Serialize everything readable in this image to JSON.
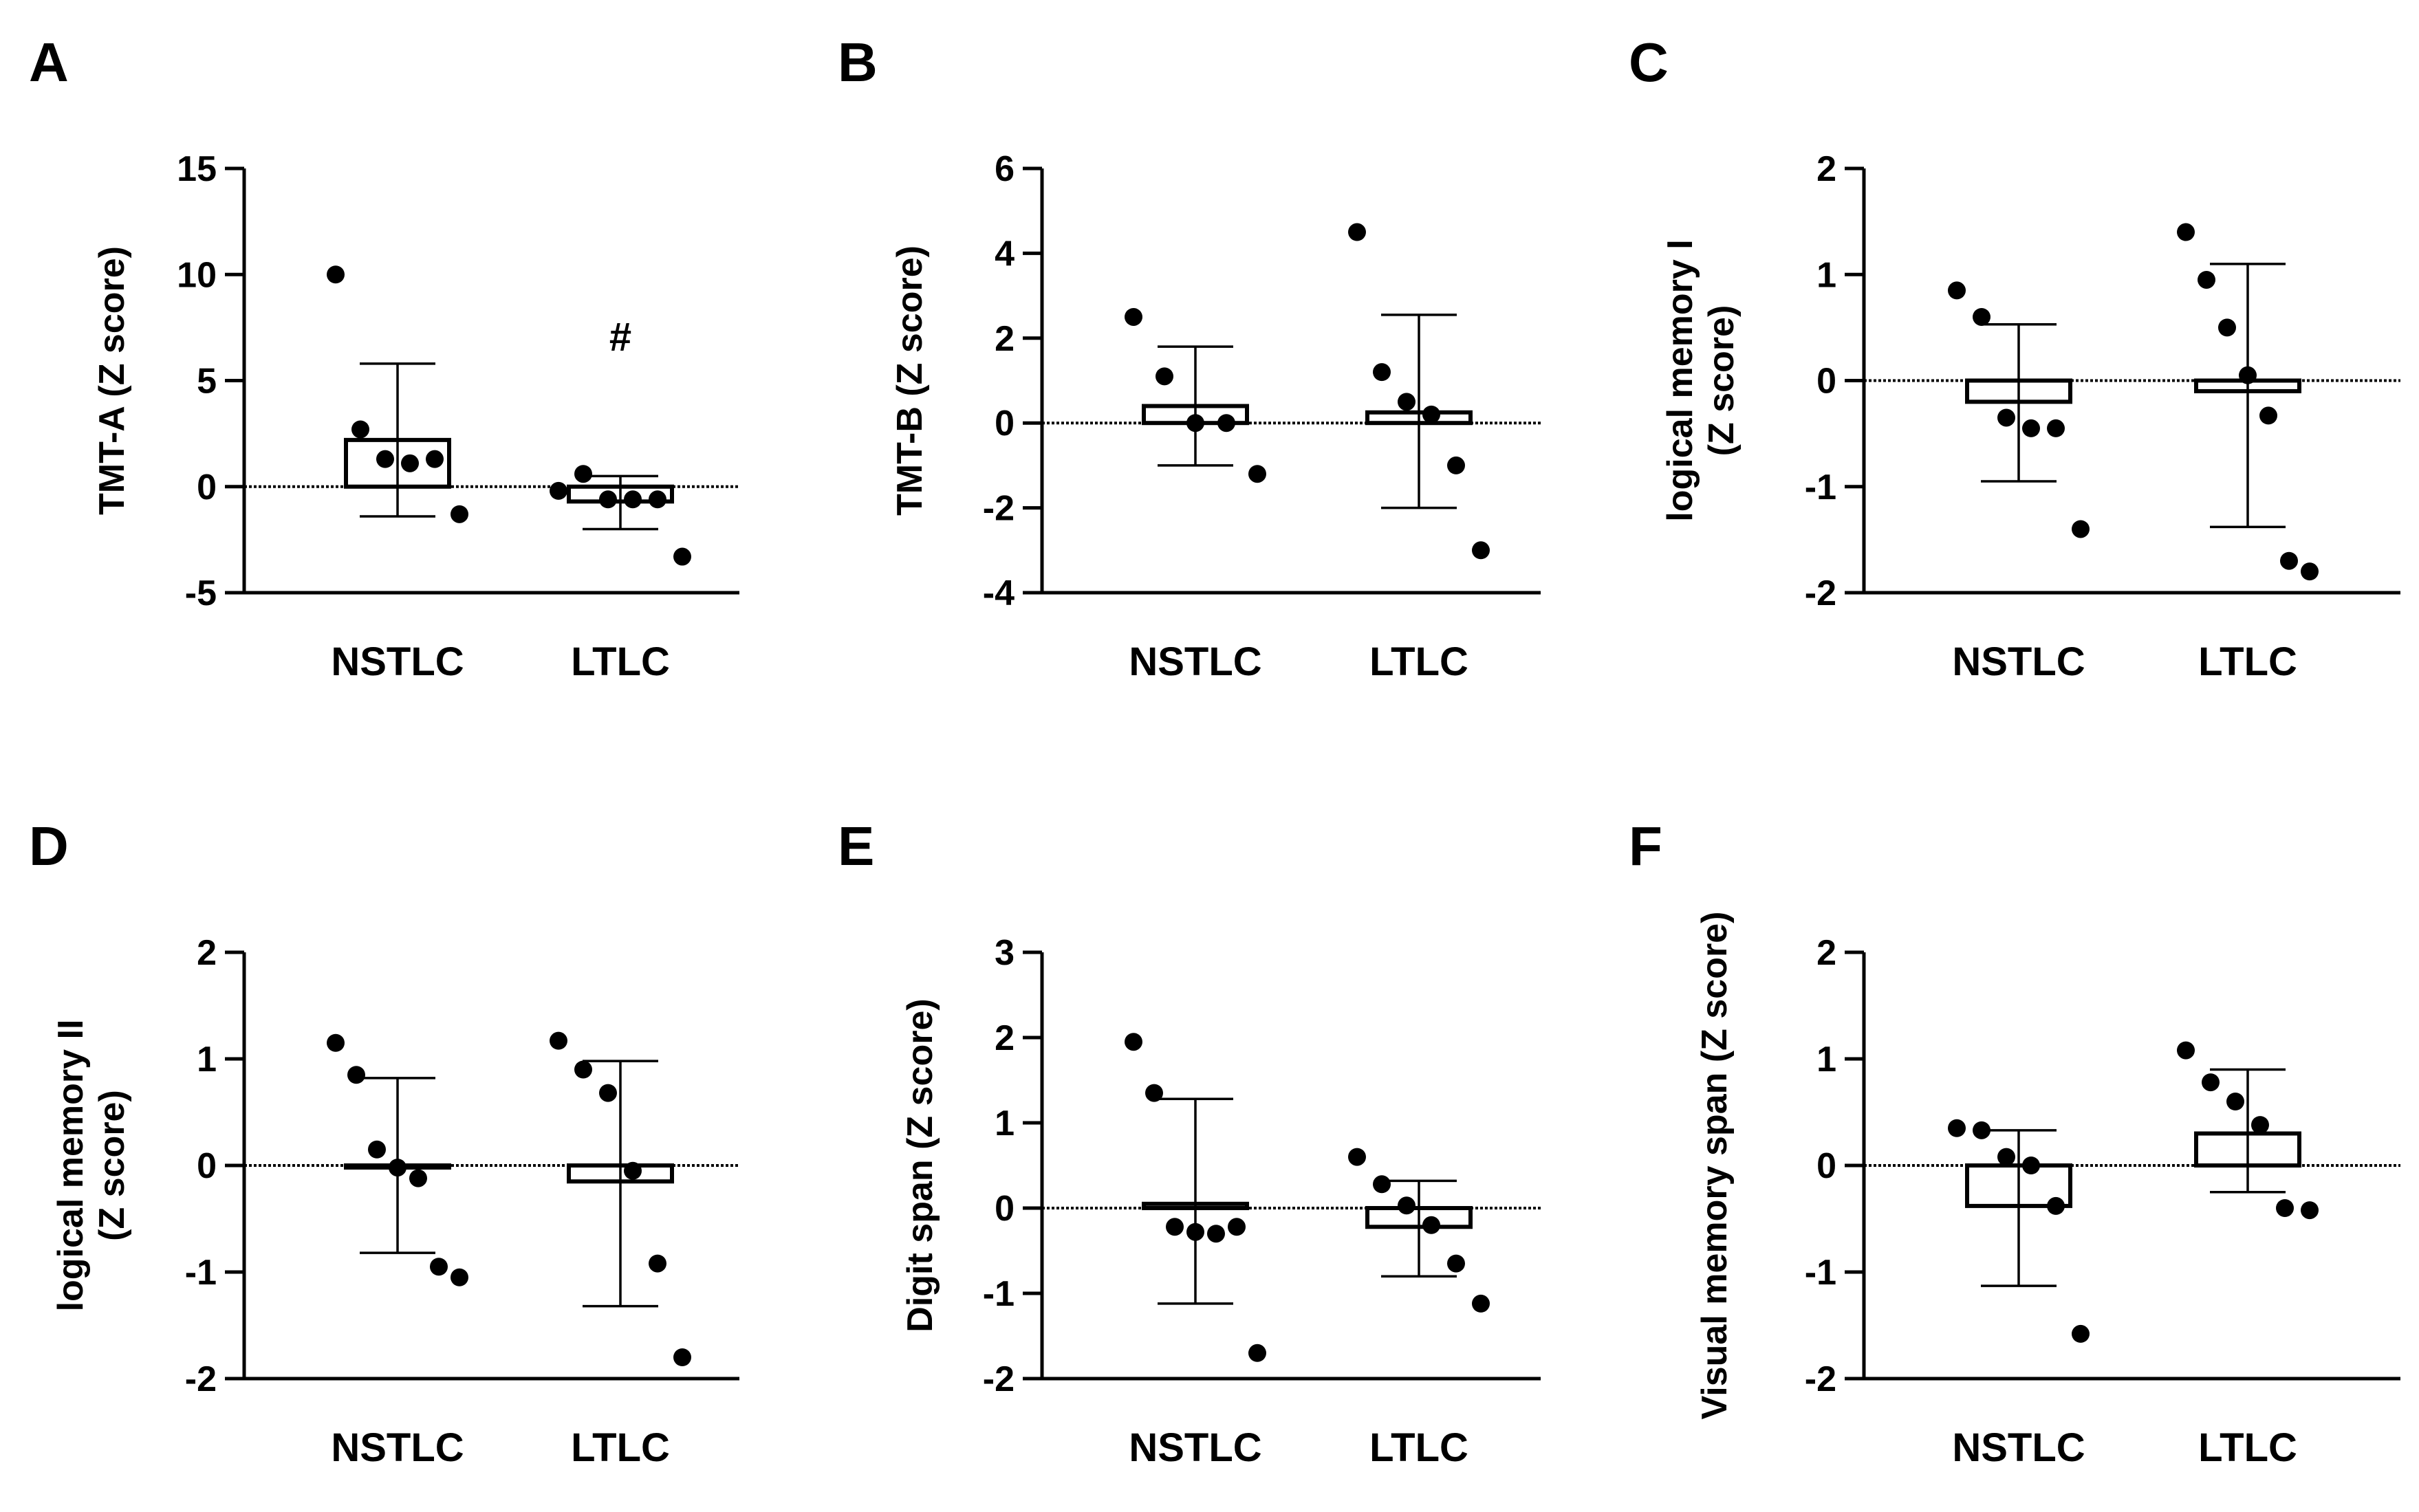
{
  "chart_data": [
    {
      "panel": "A",
      "type": "bar",
      "ylabel": [
        "TMT-A (Z score)"
      ],
      "ylim": [
        -5,
        15
      ],
      "yticks": [
        -5,
        0,
        5,
        10,
        15
      ],
      "categories": [
        "NSTLC",
        "LTLC"
      ],
      "means": [
        2.2,
        -0.7
      ],
      "err_low": [
        -1.4,
        -2.0
      ],
      "err_high": [
        5.8,
        0.5
      ],
      "points": [
        [
          10.0,
          2.7,
          1.3,
          1.1,
          1.3,
          -1.3
        ],
        [
          -0.2,
          0.6,
          -0.6,
          -0.6,
          -0.6,
          -3.3
        ]
      ],
      "annotations": [
        {
          "category": "LTLC",
          "text": "#",
          "y": 7.0
        }
      ]
    },
    {
      "panel": "B",
      "type": "bar",
      "ylabel": [
        "TMT-B (Z score)"
      ],
      "ylim": [
        -4,
        6
      ],
      "yticks": [
        -4,
        -2,
        0,
        2,
        4,
        6
      ],
      "categories": [
        "NSTLC",
        "LTLC"
      ],
      "means": [
        0.4,
        0.25
      ],
      "err_low": [
        -1.0,
        -2.0
      ],
      "err_high": [
        1.8,
        2.55
      ],
      "points": [
        [
          2.5,
          1.1,
          0.0,
          0.0,
          -1.2
        ],
        [
          4.5,
          1.2,
          0.5,
          0.2,
          -1.0,
          -3.0
        ]
      ],
      "annotations": []
    },
    {
      "panel": "C",
      "type": "bar",
      "ylabel": [
        "logical memory I",
        "(Z score)"
      ],
      "ylim": [
        -2,
        2
      ],
      "yticks": [
        -2,
        -1,
        0,
        1,
        2
      ],
      "categories": [
        "NSTLC",
        "LTLC"
      ],
      "means": [
        -0.2,
        -0.1
      ],
      "err_low": [
        -0.95,
        -1.38
      ],
      "err_high": [
        0.53,
        1.1
      ],
      "points": [
        [
          0.85,
          0.6,
          -0.35,
          -0.45,
          -0.45,
          -1.4
        ],
        [
          1.4,
          0.95,
          0.5,
          0.05,
          -0.33,
          -1.7,
          -1.8
        ]
      ],
      "annotations": []
    },
    {
      "panel": "D",
      "type": "bar",
      "ylabel": [
        "logical memory II",
        "(Z score)"
      ],
      "ylim": [
        -2,
        2
      ],
      "yticks": [
        -2,
        -1,
        0,
        1,
        2
      ],
      "categories": [
        "NSTLC",
        "LTLC"
      ],
      "means": [
        0.0,
        -0.15
      ],
      "err_low": [
        -0.82,
        -1.32
      ],
      "err_high": [
        0.82,
        0.98
      ],
      "points": [
        [
          1.15,
          0.85,
          0.15,
          -0.02,
          -0.12,
          -0.95,
          -1.05
        ],
        [
          1.17,
          0.9,
          0.68,
          -0.05,
          -0.92,
          -1.8
        ]
      ],
      "annotations": []
    },
    {
      "panel": "E",
      "type": "bar",
      "ylabel": [
        "Digit span  (Z score)"
      ],
      "ylim": [
        -2,
        3
      ],
      "yticks": [
        -2,
        -1,
        0,
        1,
        2,
        3
      ],
      "categories": [
        "NSTLC",
        "LTLC"
      ],
      "means": [
        0.05,
        -0.22
      ],
      "err_low": [
        -1.12,
        -0.8
      ],
      "err_high": [
        1.28,
        0.32
      ],
      "points": [
        [
          1.95,
          1.35,
          -0.22,
          -0.28,
          -0.3,
          -0.22,
          -1.7
        ],
        [
          0.6,
          0.28,
          0.03,
          -0.2,
          -0.65,
          -1.12
        ]
      ],
      "annotations": []
    },
    {
      "panel": "F",
      "type": "bar",
      "ylabel": [
        "Visual memory span  (Z score)"
      ],
      "ylim": [
        -2,
        2
      ],
      "yticks": [
        -2,
        -1,
        0,
        1,
        2
      ],
      "categories": [
        "NSTLC",
        "LTLC"
      ],
      "means": [
        -0.38,
        0.3
      ],
      "err_low": [
        -1.13,
        -0.25
      ],
      "err_high": [
        0.33,
        0.9
      ],
      "points": [
        [
          0.35,
          0.33,
          0.08,
          0.0,
          -0.38,
          -1.58
        ],
        [
          1.08,
          0.78,
          0.6,
          0.38,
          -0.4,
          -0.42
        ]
      ],
      "annotations": []
    }
  ]
}
